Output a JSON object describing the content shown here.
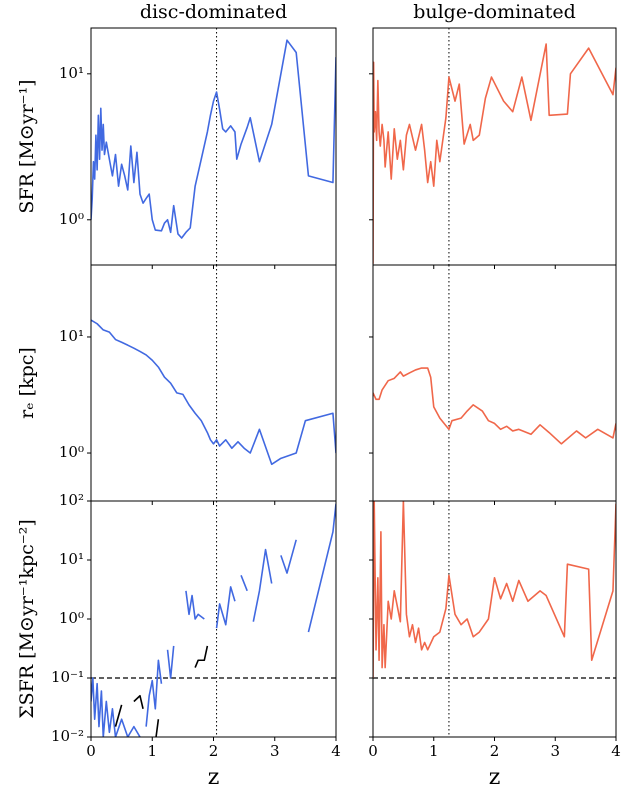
{
  "chart_data": [
    {
      "type": "line",
      "title": "disc-dominated",
      "ylabel": "SFR [M⊙yr⁻¹]",
      "yscale": "log",
      "xlim": [
        0,
        4
      ],
      "ylim": [
        0.49,
        20.6
      ],
      "yticks": [
        {
          "value": 1,
          "label": "10⁰"
        },
        {
          "value": 10,
          "label": "10¹"
        }
      ],
      "vline": 2.05,
      "x": [
        0,
        0.02,
        0.04,
        0.06,
        0.08,
        0.1,
        0.12,
        0.14,
        0.16,
        0.18,
        0.2,
        0.22,
        0.25,
        0.3,
        0.35,
        0.4,
        0.45,
        0.5,
        0.55,
        0.6,
        0.65,
        0.7,
        0.75,
        0.8,
        0.85,
        0.9,
        0.95,
        1.0,
        1.05,
        1.15,
        1.2,
        1.25,
        1.3,
        1.35,
        1.42,
        1.48,
        1.55,
        1.62,
        1.7,
        1.8,
        1.9,
        1.95,
        2.0,
        2.05,
        2.1,
        2.15,
        2.2,
        2.28,
        2.35,
        2.38,
        2.45,
        2.55,
        2.6,
        2.75,
        2.95,
        3.2,
        3.35,
        3.55,
        3.95,
        4.0
      ],
      "series": [
        {
          "color": "#4169e1",
          "values": [
            1.0,
            1.4,
            2.5,
            1.9,
            3.8,
            2.2,
            5.2,
            2.6,
            5.8,
            3.0,
            4.5,
            2.8,
            3.4,
            2.6,
            2.0,
            2.8,
            1.7,
            2.4,
            2.0,
            1.6,
            3.2,
            1.8,
            2.9,
            1.5,
            1.3,
            1.4,
            1.5,
            1.0,
            0.85,
            0.84,
            0.95,
            1.0,
            0.82,
            1.25,
            0.8,
            0.75,
            0.82,
            0.88,
            1.7,
            2.6,
            4.0,
            5.2,
            6.5,
            7.5,
            5.7,
            4.2,
            4.0,
            4.4,
            4.0,
            2.6,
            3.3,
            4.3,
            5.0,
            2.5,
            4.5,
            17,
            14,
            2.0,
            1.8,
            13
          ]
        }
      ]
    },
    {
      "type": "line",
      "title": "bulge-dominated",
      "yscale": "log",
      "xlim": [
        0,
        4
      ],
      "ylim": [
        0.49,
        20.6
      ],
      "vline": 1.25,
      "x": [
        0,
        0.01,
        0.02,
        0.04,
        0.06,
        0.08,
        0.1,
        0.12,
        0.15,
        0.18,
        0.2,
        0.25,
        0.3,
        0.35,
        0.4,
        0.45,
        0.5,
        0.55,
        0.6,
        0.7,
        0.8,
        0.85,
        0.9,
        0.95,
        1.0,
        1.05,
        1.1,
        1.2,
        1.25,
        1.35,
        1.42,
        1.5,
        1.6,
        1.65,
        1.75,
        1.85,
        1.95,
        2.15,
        2.3,
        2.45,
        2.6,
        2.85,
        2.9,
        3.2,
        3.25,
        3.55,
        3.95,
        4.0
      ],
      "series": [
        {
          "color": "#f0674a",
          "values": [
            0.5,
            12,
            4,
            5.5,
            3.5,
            9,
            4,
            3.2,
            4.5,
            3.5,
            2.3,
            4,
            1.9,
            4.2,
            2.6,
            3.5,
            2.2,
            3.8,
            4.5,
            3.0,
            4.5,
            3.0,
            1.8,
            2.5,
            1.7,
            3.5,
            2.5,
            5,
            9.5,
            6.5,
            8.5,
            3.3,
            4.5,
            3.5,
            3.8,
            6.8,
            9.5,
            6.5,
            5.5,
            9.5,
            4.8,
            16,
            5.2,
            5.3,
            10,
            15,
            7.2,
            11
          ]
        }
      ]
    },
    {
      "type": "line",
      "ylabel": "rₑ [kpc]",
      "yscale": "log",
      "xlim": [
        0,
        4
      ],
      "ylim": [
        0.386,
        41.7
      ],
      "yticks": [
        {
          "value": 1,
          "label": "10⁰"
        },
        {
          "value": 10,
          "label": "10¹"
        }
      ],
      "vline": 2.05,
      "x": [
        0,
        0.1,
        0.2,
        0.3,
        0.4,
        0.5,
        0.6,
        0.7,
        0.8,
        0.9,
        1.0,
        1.1,
        1.2,
        1.3,
        1.4,
        1.5,
        1.6,
        1.7,
        1.8,
        1.9,
        1.95,
        2.0,
        2.05,
        2.1,
        2.2,
        2.3,
        2.4,
        2.5,
        2.6,
        2.75,
        2.95,
        3.1,
        3.35,
        3.5,
        3.95,
        4.0
      ],
      "series": [
        {
          "color": "#4169e1",
          "values": [
            14,
            13,
            11.5,
            11,
            9.5,
            9,
            8.5,
            8,
            7.5,
            7,
            6.3,
            5.5,
            4.5,
            4.0,
            3.3,
            3.2,
            2.6,
            2.2,
            1.9,
            1.5,
            1.3,
            1.2,
            1.3,
            1.15,
            1.3,
            1.1,
            1.25,
            1.1,
            1.0,
            1.6,
            0.8,
            0.9,
            1.0,
            1.9,
            2.2,
            1.0
          ]
        }
      ]
    },
    {
      "type": "line",
      "yscale": "log",
      "xlim": [
        0,
        4
      ],
      "ylim": [
        0.386,
        41.7
      ],
      "vline": 1.25,
      "x": [
        0,
        0.05,
        0.1,
        0.15,
        0.25,
        0.35,
        0.45,
        0.5,
        0.6,
        0.7,
        0.8,
        0.9,
        0.95,
        1.0,
        1.1,
        1.25,
        1.3,
        1.45,
        1.55,
        1.65,
        1.8,
        1.9,
        2.0,
        2.1,
        2.2,
        2.3,
        2.4,
        2.6,
        2.75,
        2.9,
        3.1,
        3.35,
        3.5,
        3.7,
        3.95,
        4.0
      ],
      "series": [
        {
          "color": "#f0674a",
          "values": [
            3.3,
            2.9,
            2.9,
            3.5,
            4.2,
            4.4,
            5.0,
            4.6,
            4.9,
            5.2,
            5.4,
            5.4,
            4.5,
            2.5,
            2.0,
            1.6,
            1.9,
            2.0,
            2.3,
            2.6,
            2.3,
            1.9,
            1.8,
            1.6,
            1.7,
            1.55,
            1.6,
            1.45,
            1.75,
            1.5,
            1.2,
            1.55,
            1.35,
            1.6,
            1.35,
            1.8
          ]
        }
      ]
    },
    {
      "type": "line",
      "ylabel": "ΣSFR [M⊙yr⁻¹kpc⁻²]",
      "xlabel": "z",
      "yscale": "log",
      "xlim": [
        0,
        4
      ],
      "ylim": [
        0.01,
        100
      ],
      "xticks": [
        0,
        1,
        2,
        3,
        4
      ],
      "yticks": [
        {
          "value": 0.01,
          "label": "10⁻²"
        },
        {
          "value": 0.1,
          "label": "10⁻¹"
        },
        {
          "value": 1,
          "label": "10⁰"
        },
        {
          "value": 10,
          "label": "10¹"
        },
        {
          "value": 100,
          "label": "10²"
        }
      ],
      "vline": 2.05,
      "hline": 0.1,
      "x": [
        0,
        0.03,
        0.06,
        0.1,
        0.13,
        0.17,
        0.2,
        0.25,
        0.3,
        0.35,
        0.4,
        0.5,
        0.6,
        0.7,
        0.8,
        0.85,
        0.9,
        0.95,
        1.0,
        1.05,
        1.1,
        1.15,
        1.2,
        1.25,
        1.3,
        1.35,
        1.4,
        1.45,
        1.5,
        1.55,
        1.6,
        1.65,
        1.7,
        1.75,
        1.85,
        1.9,
        1.95,
        2.0,
        2.05,
        2.1,
        2.2,
        2.28,
        2.35,
        2.4,
        2.45,
        2.55,
        2.6,
        2.65,
        2.75,
        2.85,
        2.95,
        3.0,
        3.1,
        3.2,
        3.35,
        3.5,
        3.55,
        3.95,
        4.0
      ],
      "series": [
        {
          "color": "#4169e1",
          "values": [
            0.04,
            0.1,
            0.02,
            0.08,
            0.015,
            0.06,
            0.01,
            0.04,
            0.012,
            0.03,
            0.01,
            0.02,
            0.01,
            0.015,
            0.01,
            null,
            0.015,
            0.05,
            0.09,
            0.03,
            0.2,
            0.08,
            null,
            0.3,
            0.1,
            0.35,
            null,
            0.2,
            null,
            3.0,
            1.2,
            2.5,
            1.0,
            1.2,
            1.0,
            null,
            0.8,
            null,
            0.7,
            1.8,
            0.8,
            3.5,
            2.0,
            null,
            5.5,
            3.0,
            null,
            0.9,
            3.0,
            15,
            4.0,
            null,
            12,
            6,
            22,
            null,
            0.6,
            30,
            90
          ]
        },
        {
          "color": "#000000",
          "values": [
            0.03,
            null,
            null,
            0.02,
            null,
            null,
            0.04,
            null,
            0.03,
            null,
            0.015,
            0.035,
            null,
            0.04,
            0.05,
            0.03,
            null,
            0.01,
            null,
            0.008,
            0.02,
            null,
            0.03,
            null,
            0.03,
            null,
            0.03,
            null,
            0.12,
            null,
            0.12,
            null,
            0.15,
            0.2,
            0.2,
            0.35,
            null,
            0.45,
            null,
            0.5,
            null,
            null,
            null,
            0.55,
            null,
            null,
            0.5,
            null,
            null,
            null,
            null,
            0.5,
            null,
            null,
            null,
            0.5,
            null,
            null,
            0.48
          ]
        }
      ]
    },
    {
      "type": "line",
      "xlabel": "z",
      "yscale": "log",
      "xlim": [
        0,
        4
      ],
      "ylim": [
        0.01,
        100
      ],
      "xticks": [
        0,
        1,
        2,
        3,
        4
      ],
      "vline": 1.25,
      "hline": 0.1,
      "x": [
        0,
        0.02,
        0.05,
        0.08,
        0.1,
        0.13,
        0.15,
        0.18,
        0.2,
        0.25,
        0.3,
        0.35,
        0.45,
        0.5,
        0.55,
        0.6,
        0.65,
        0.7,
        0.75,
        0.8,
        0.85,
        0.9,
        1.0,
        1.1,
        1.2,
        1.25,
        1.35,
        1.45,
        1.55,
        1.65,
        1.75,
        1.9,
        2.0,
        2.1,
        2.2,
        2.3,
        2.4,
        2.55,
        2.75,
        2.85,
        3.15,
        3.2,
        3.55,
        3.6,
        3.95,
        4.0
      ],
      "series": [
        {
          "color": "#f0674a",
          "values": [
            0.1,
            100,
            0.3,
            5,
            0.2,
            30,
            0.15,
            0.8,
            0.15,
            2,
            1.0,
            3,
            0.9,
            100,
            1.2,
            0.5,
            0.8,
            0.4,
            0.7,
            0.3,
            0.4,
            0.3,
            0.5,
            0.6,
            1.5,
            5.5,
            1.2,
            0.8,
            1.0,
            0.5,
            0.6,
            1.0,
            5,
            2.2,
            4,
            2.0,
            4.5,
            2.0,
            3.0,
            2.5,
            0.5,
            8.5,
            7,
            0.2,
            3.0,
            90
          ]
        }
      ]
    }
  ]
}
